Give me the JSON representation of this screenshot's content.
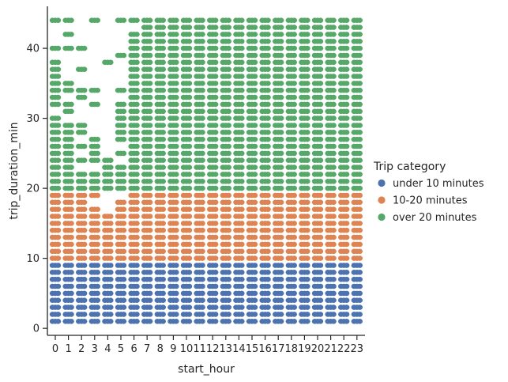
{
  "chart_data": {
    "type": "scatter",
    "subtype": "categorical strip plot (jittered)",
    "title": "",
    "xlabel": "start_hour",
    "ylabel": "trip_duration_min",
    "x_categories": [
      "0",
      "1",
      "2",
      "3",
      "4",
      "5",
      "6",
      "7",
      "8",
      "9",
      "10",
      "11",
      "12",
      "13",
      "14",
      "15",
      "16",
      "17",
      "18",
      "19",
      "20",
      "21",
      "22",
      "23"
    ],
    "ylim": [
      -1,
      46
    ],
    "yticks": [
      0,
      10,
      20,
      30,
      40
    ],
    "grid": false,
    "legend": {
      "title": "Trip category",
      "placement": "right",
      "entries": [
        {
          "label": "under 10 minutes",
          "color": "#4c72b0"
        },
        {
          "label": "10-20 minutes",
          "color": "#dd8452"
        },
        {
          "label": "over 20 minutes",
          "color": "#55a868"
        }
      ]
    },
    "series": [
      {
        "name": "under 10 minutes",
        "color": "#4c72b0",
        "y_range": [
          1,
          9
        ]
      },
      {
        "name": "10-20 minutes",
        "color": "#dd8452",
        "y_range": [
          10,
          19
        ]
      },
      {
        "name": "over 20 minutes",
        "color": "#55a868",
        "y_range": [
          20,
          44
        ]
      }
    ],
    "over20_durations_by_hour": {
      "0": [
        20,
        21,
        22,
        23,
        24,
        25,
        26,
        27,
        28,
        29,
        30,
        32,
        33,
        34,
        35,
        36,
        37,
        38,
        40,
        44
      ],
      "1": [
        20,
        21,
        22,
        23,
        24,
        25,
        26,
        27,
        28,
        29,
        31,
        32,
        34,
        35,
        40,
        42,
        44
      ],
      "2": [
        20,
        21,
        22,
        24,
        26,
        28,
        29,
        33,
        34,
        37,
        40
      ],
      "3": [
        20,
        21,
        22,
        24,
        25,
        26,
        27,
        32,
        34,
        44
      ],
      "4": [
        20,
        21,
        22,
        23,
        24,
        38
      ],
      "5": [
        20,
        21,
        22,
        23,
        25,
        27,
        28,
        29,
        30,
        31,
        32,
        34,
        39,
        44
      ],
      "6": [
        20,
        21,
        22,
        23,
        24,
        25,
        26,
        27,
        28,
        29,
        30,
        31,
        32,
        33,
        34,
        35,
        36,
        37,
        38,
        39,
        40,
        41,
        42,
        44
      ],
      "7": [
        20,
        21,
        22,
        23,
        24,
        25,
        26,
        27,
        28,
        29,
        30,
        31,
        32,
        33,
        34,
        35,
        36,
        37,
        38,
        39,
        40,
        41,
        42,
        43,
        44
      ],
      "8": [
        20,
        21,
        22,
        23,
        24,
        25,
        26,
        27,
        28,
        29,
        30,
        31,
        32,
        33,
        34,
        35,
        36,
        37,
        38,
        39,
        40,
        41,
        42,
        43,
        44
      ],
      "9": [
        20,
        21,
        22,
        23,
        24,
        25,
        26,
        27,
        28,
        29,
        30,
        31,
        32,
        33,
        34,
        35,
        36,
        37,
        38,
        39,
        40,
        41,
        42,
        43,
        44
      ],
      "10": [
        20,
        21,
        22,
        23,
        24,
        25,
        26,
        27,
        28,
        29,
        30,
        31,
        32,
        33,
        34,
        35,
        36,
        37,
        38,
        39,
        40,
        41,
        42,
        43,
        44
      ],
      "11": [
        20,
        21,
        22,
        23,
        24,
        25,
        26,
        27,
        28,
        29,
        30,
        31,
        32,
        33,
        34,
        35,
        36,
        37,
        38,
        39,
        40,
        41,
        42,
        43,
        44
      ],
      "12": [
        20,
        21,
        22,
        23,
        24,
        25,
        26,
        27,
        28,
        29,
        30,
        31,
        32,
        33,
        34,
        35,
        36,
        37,
        38,
        39,
        40,
        41,
        42,
        43,
        44
      ],
      "13": [
        20,
        21,
        22,
        23,
        24,
        25,
        26,
        27,
        28,
        29,
        30,
        31,
        32,
        33,
        34,
        35,
        36,
        37,
        38,
        39,
        40,
        41,
        42,
        43,
        44
      ],
      "14": [
        20,
        21,
        22,
        23,
        24,
        25,
        26,
        27,
        28,
        29,
        30,
        31,
        32,
        33,
        34,
        35,
        36,
        37,
        38,
        39,
        40,
        41,
        42,
        43,
        44
      ],
      "15": [
        20,
        21,
        22,
        23,
        24,
        25,
        26,
        27,
        28,
        29,
        30,
        31,
        32,
        33,
        34,
        35,
        36,
        37,
        38,
        39,
        40,
        41,
        42,
        43,
        44
      ],
      "16": [
        20,
        21,
        22,
        23,
        24,
        25,
        26,
        27,
        28,
        29,
        30,
        31,
        32,
        33,
        34,
        35,
        36,
        37,
        38,
        39,
        40,
        41,
        42,
        43,
        44
      ],
      "17": [
        20,
        21,
        22,
        23,
        24,
        25,
        26,
        27,
        28,
        29,
        30,
        31,
        32,
        33,
        34,
        35,
        36,
        37,
        38,
        39,
        40,
        41,
        42,
        43,
        44
      ],
      "18": [
        20,
        21,
        22,
        23,
        24,
        25,
        26,
        27,
        28,
        29,
        30,
        31,
        32,
        33,
        34,
        35,
        36,
        37,
        38,
        39,
        40,
        41,
        42,
        43,
        44
      ],
      "19": [
        20,
        21,
        22,
        23,
        24,
        25,
        26,
        27,
        28,
        29,
        30,
        31,
        32,
        33,
        34,
        35,
        36,
        37,
        38,
        39,
        40,
        41,
        42,
        43,
        44
      ],
      "20": [
        20,
        21,
        22,
        23,
        24,
        25,
        26,
        27,
        28,
        29,
        30,
        31,
        32,
        33,
        34,
        35,
        36,
        37,
        38,
        39,
        40,
        41,
        42,
        43,
        44
      ],
      "21": [
        20,
        21,
        22,
        23,
        24,
        25,
        26,
        27,
        28,
        29,
        30,
        31,
        32,
        33,
        34,
        35,
        36,
        37,
        38,
        39,
        40,
        41,
        42,
        43,
        44
      ],
      "22": [
        20,
        21,
        22,
        23,
        24,
        25,
        26,
        27,
        28,
        29,
        30,
        31,
        32,
        33,
        34,
        35,
        36,
        37,
        38,
        39,
        40,
        41,
        42,
        43,
        44
      ],
      "23": [
        20,
        21,
        22,
        23,
        24,
        25,
        26,
        27,
        28,
        29,
        30,
        31,
        32,
        33,
        34,
        35,
        36,
        37,
        38,
        39,
        40,
        41,
        42,
        43,
        44
      ]
    }
  }
}
